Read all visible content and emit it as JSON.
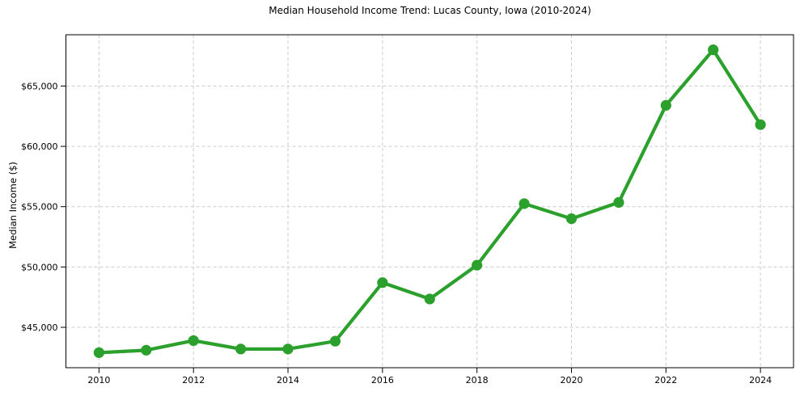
{
  "figure": {
    "background": "#ffffff"
  },
  "chart_data": {
    "type": "line",
    "title": "Median Household Income Trend: Lucas County, Iowa (2010-2024)",
    "xlabel": "",
    "ylabel": "Median Income ($)",
    "x": [
      2010,
      2011,
      2012,
      2013,
      2014,
      2015,
      2016,
      2017,
      2018,
      2019,
      2020,
      2021,
      2022,
      2023,
      2024
    ],
    "values": [
      42900,
      43100,
      43900,
      43200,
      43200,
      43850,
      48700,
      47350,
      50150,
      55250,
      54000,
      55350,
      63400,
      68000,
      61800
    ],
    "xlim": [
      2009.3,
      2024.7
    ],
    "ylim": [
      41650,
      69250
    ],
    "xticks": [
      2010,
      2012,
      2014,
      2016,
      2018,
      2020,
      2022,
      2024
    ],
    "xtick_labels": [
      "2010",
      "2012",
      "2014",
      "2016",
      "2018",
      "2020",
      "2022",
      "2024"
    ],
    "yticks": [
      45000,
      50000,
      55000,
      60000,
      65000
    ],
    "ytick_labels": [
      "$45,000",
      "$50,000",
      "$55,000",
      "$60,000",
      "$65,000"
    ],
    "grid": true,
    "grid_style": "dashed",
    "legend": "none",
    "marker": "circle",
    "colors": {
      "line": "#2ca02c",
      "marker": "#2ca02c",
      "grid": "#cccccc",
      "spine": "#000000",
      "text": "#000000"
    }
  }
}
